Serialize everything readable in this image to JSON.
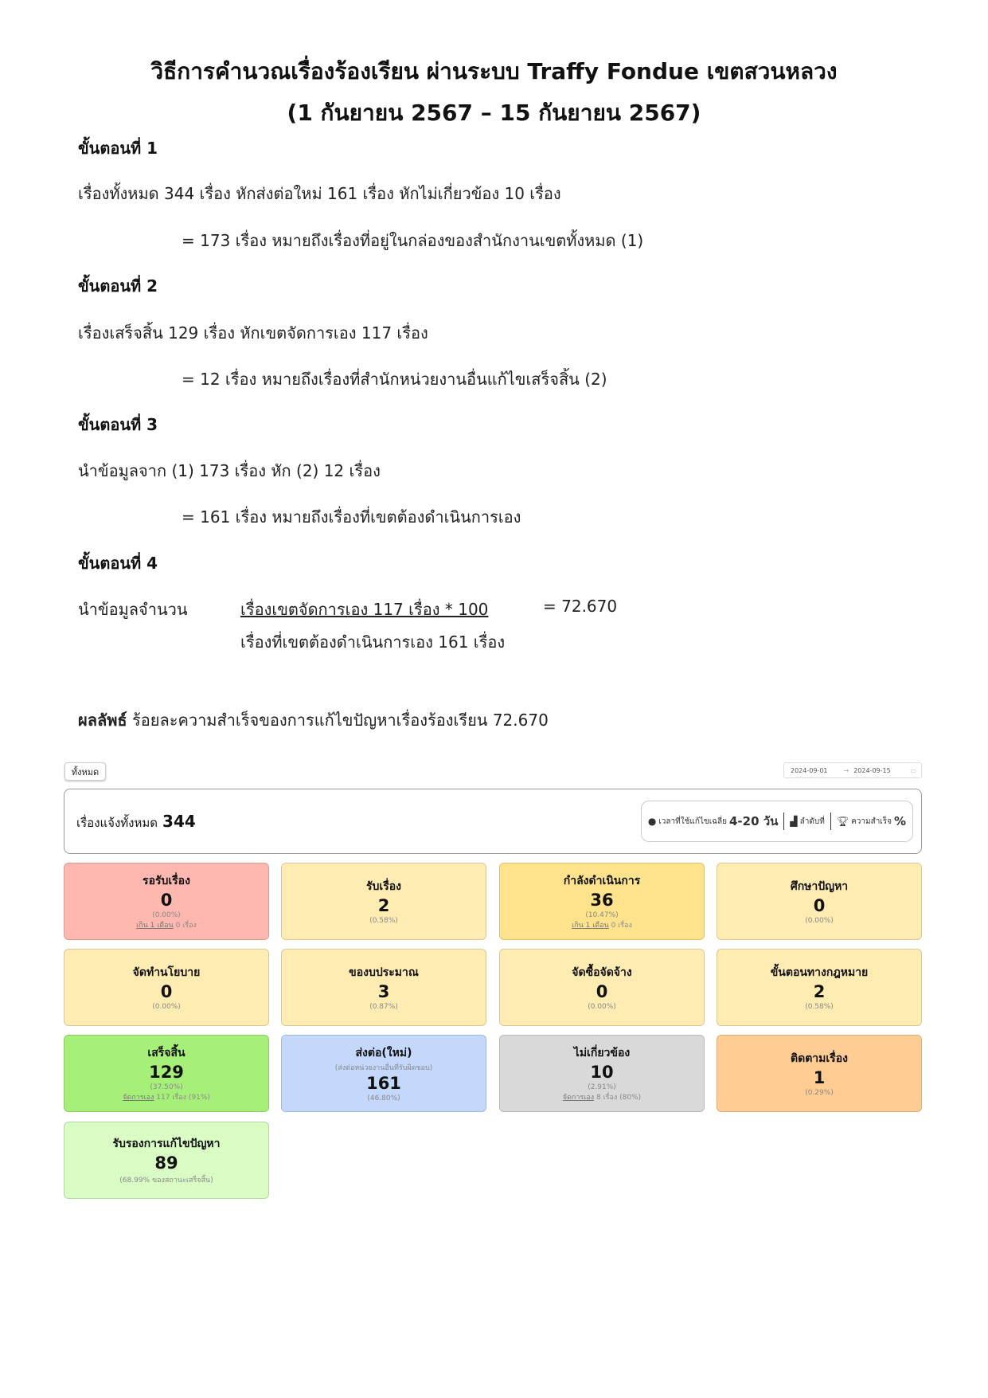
{
  "title": {
    "line1": "วิธีการคำนวณเรื่องร้องเรียน ผ่านระบบ Traffy Fondue เขตสวนหลวง",
    "line2": "(1 กันยายน 2567 – 15 กันยายน 2567)"
  },
  "steps": [
    {
      "heading": "ขั้นตอนที่ 1",
      "line": "เรื่องทั้งหมด 344 เรื่อง  หักส่งต่อใหม่ 161 เรื่อง หักไม่เกี่ยวข้อง 10 เรื่อง",
      "result": "= 173 เรื่อง หมายถึงเรื่องที่อยู่ในกล่องของสำนักงานเขตทั้งหมด (1)"
    },
    {
      "heading": "ขั้นตอนที่ 2",
      "line": "เรื่องเสร็จสิ้น 129 เรื่อง  หักเขตจัดการเอง 117 เรื่อง",
      "result": "= 12 เรื่อง หมายถึงเรื่องที่สำนักหน่วยงานอื่นแก้ไขเสร็จสิ้น (2)"
    },
    {
      "heading": "ขั้นตอนที่ 3",
      "line": "นำข้อมูลจาก (1) 173 เรื่อง หัก (2) 12 เรื่อง",
      "result": "= 161 เรื่อง หมายถึงเรื่องที่เขตต้องดำเนินการเอง"
    },
    {
      "heading": "ขั้นตอนที่ 4",
      "label": "นำข้อมูลจำนวน",
      "numerator": "เรื่องเขตจัดการเอง 117 เรื่อง * 100",
      "denominator": "เรื่องที่เขตต้องดำเนินการเอง 161 เรื่อง",
      "result": "= 72.670"
    }
  ],
  "conclusion": {
    "label": "ผลลัพธ์",
    "text": "ร้อยละความสำเร็จของการแก้ไขปัญหาเรื่องร้องเรียน 72.670"
  },
  "dashboard": {
    "filter_button": "ทั้งหมด",
    "date_from": "2024-09-01",
    "date_arrow": "→",
    "date_to": "2024-09-15",
    "summary_label": "เรื่องแจ้งทั้งหมด",
    "summary_total": "344",
    "stats": {
      "avg_time_label": "เวลาที่ใช้แก้ไขเฉลี่ย",
      "avg_time_value": "4-20 วัน",
      "rank_label": "ลำดับที่",
      "success_label": "ความสำเร็จ",
      "success_value": "%"
    },
    "cards": [
      {
        "name": "รอรับเรื่อง",
        "value": "0",
        "percent": "(0.00%)",
        "sub_link": "เกิน 1 เดือน",
        "sub_text": " 0 เรื่อง",
        "color": "#ffb8b0"
      },
      {
        "name": "รับเรื่อง",
        "value": "2",
        "percent": "(0.58%)",
        "color": "#ffecb3"
      },
      {
        "name": "กำลังดำเนินการ",
        "value": "36",
        "percent": "(10.47%)",
        "sub_link": "เกิน 1 เดือน",
        "sub_text": " 0 เรื่อง",
        "color": "#ffe38c"
      },
      {
        "name": "ศึกษาปัญหา",
        "value": "0",
        "percent": "(0.00%)",
        "color": "#ffecb3"
      },
      {
        "name": "จัดทำนโยบาย",
        "value": "0",
        "percent": "(0.00%)",
        "color": "#ffecb3"
      },
      {
        "name": "ของบประมาณ",
        "value": "3",
        "percent": "(0.87%)",
        "color": "#ffecb3"
      },
      {
        "name": "จัดซื้อจัดจ้าง",
        "value": "0",
        "percent": "(0.00%)",
        "color": "#ffecb3"
      },
      {
        "name": "ขั้นตอนทางกฎหมาย",
        "value": "2",
        "percent": "(0.58%)",
        "color": "#ffecb3"
      },
      {
        "name": "เสร็จสิ้น",
        "value": "129",
        "percent": "(37.50%)",
        "sub_link": "จัดการเอง",
        "sub_text": " 117 เรื่อง (91%)",
        "color": "#a6f07a"
      },
      {
        "name": "ส่งต่อ(ใหม่)",
        "note": "(ส่งต่อหน่วยงานอื่นที่รับผิดชอบ)",
        "value": "161",
        "percent": "(46.80%)",
        "color": "#c4d8fc"
      },
      {
        "name": "ไม่เกี่ยวข้อง",
        "value": "10",
        "percent": "(2.91%)",
        "sub_link": "จัดการเอง",
        "sub_text": " 8 เรื่อง (80%)",
        "color": "#d9d9d9"
      },
      {
        "name": "ติดตามเรื่อง",
        "value": "1",
        "percent": "(0.29%)",
        "color": "#ffcc94"
      },
      {
        "name": "รับรองการแก้ไขปัญหา",
        "value": "89",
        "percent": "(68.99% ของสถานะเสร็จสิ้น)",
        "color": "#d8fcc4"
      }
    ]
  }
}
